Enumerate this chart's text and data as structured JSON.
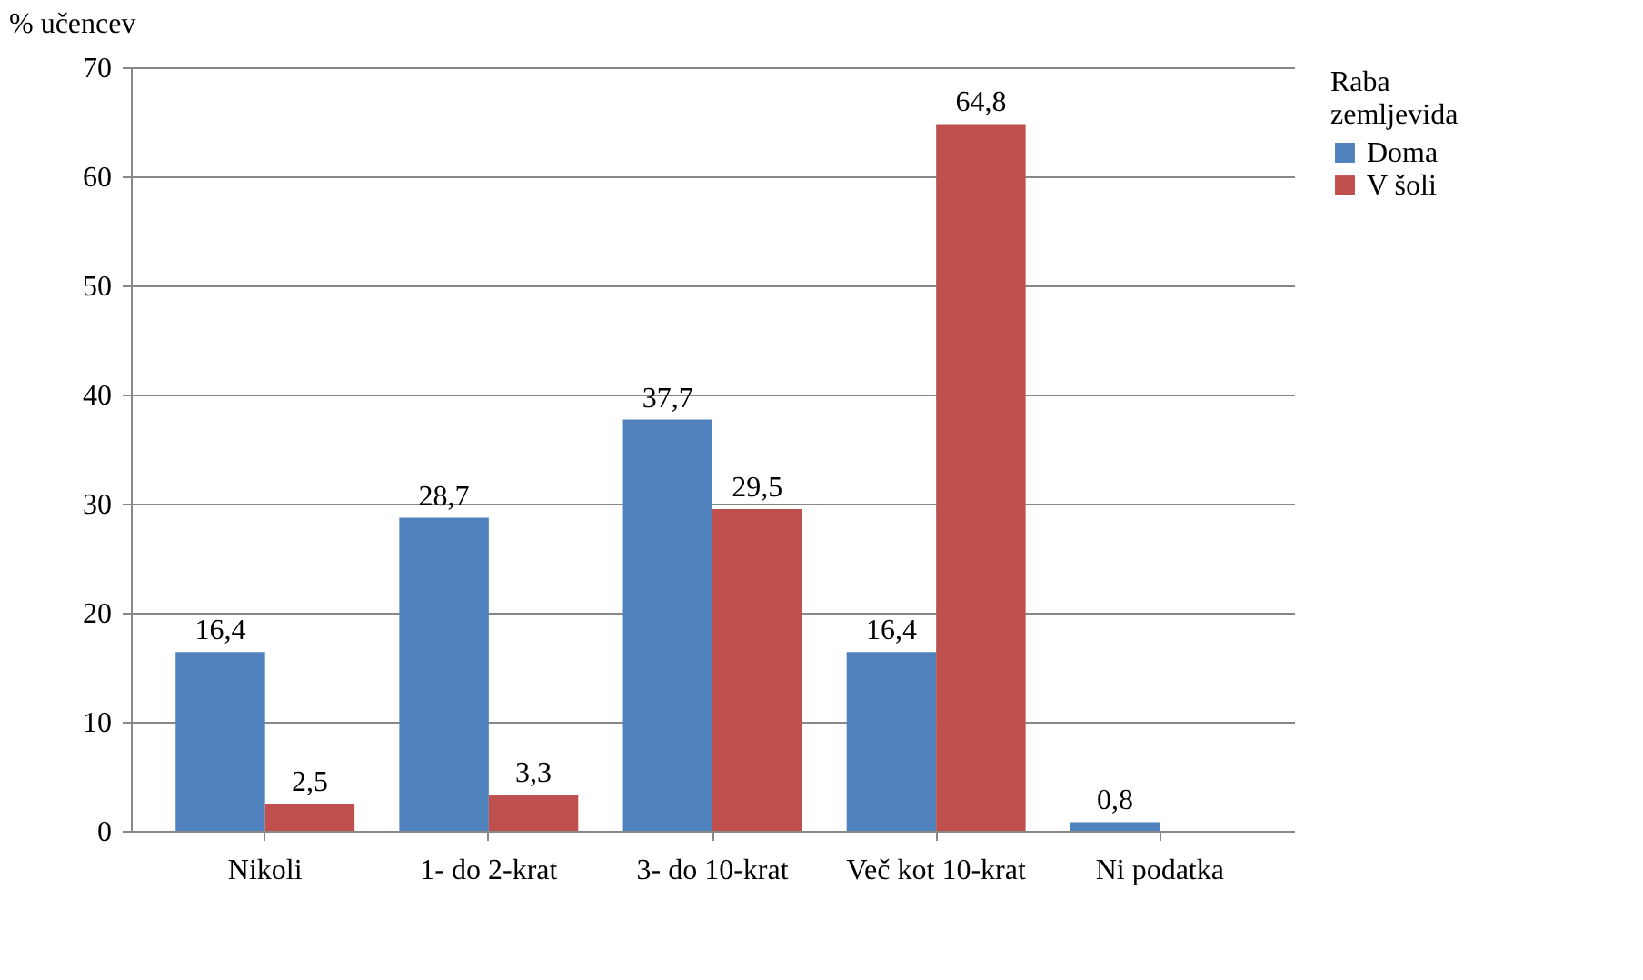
{
  "chart_data": {
    "type": "bar",
    "ylabel": "% učencev",
    "legend_title": "Raba zemljevida",
    "categories": [
      "Nikoli",
      "1- do 2-krat",
      "3- do 10-krat",
      "Več kot 10-krat",
      "Ni podatka"
    ],
    "series": [
      {
        "name": "Doma",
        "color": "#4f81bd",
        "values": [
          16.4,
          28.7,
          37.7,
          16.4,
          0.8
        ],
        "value_labels": [
          "16,4",
          "28,7",
          "37,7",
          "16,4",
          "0,8"
        ]
      },
      {
        "name": "V šoli",
        "color": "#c0504d",
        "values": [
          2.5,
          3.3,
          29.5,
          64.8,
          null
        ],
        "value_labels": [
          "2,5",
          "3,3",
          "29,5",
          "64,8",
          null
        ]
      }
    ],
    "ylim": [
      0,
      70
    ],
    "yticks": [
      0,
      10,
      20,
      30,
      40,
      50,
      60,
      70
    ],
    "grid": "y",
    "legend": "right"
  }
}
